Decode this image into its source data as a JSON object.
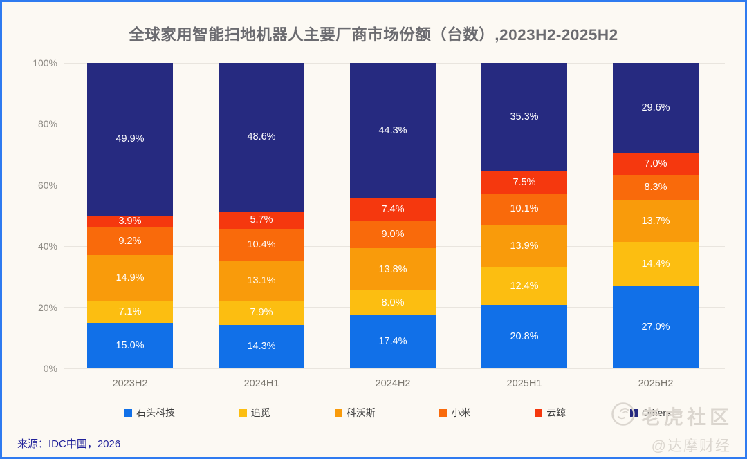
{
  "title": "全球家用智能扫地机器人主要厂商市场份额（台数）,2023H2-2025H2",
  "source": "来源：IDC中国，2026",
  "watermark": {
    "community": "老虎社区",
    "handle": "@达摩财经"
  },
  "colors": {
    "frame_border": "#2f7bf0",
    "background": "#fcf9f3",
    "gridline": "#e9e5de",
    "bar_label": "#ffffff"
  },
  "chart_data": {
    "type": "bar",
    "stacked": true,
    "value_suffix": "%",
    "categories": [
      "2023H2",
      "2024H1",
      "2024H2",
      "2025H1",
      "2025H2"
    ],
    "series": [
      {
        "name": "石头科技",
        "color": "#1170e8",
        "values": [
          15.0,
          14.3,
          17.4,
          20.8,
          27.0
        ]
      },
      {
        "name": "追觅",
        "color": "#fcbe11",
        "values": [
          7.1,
          7.9,
          8.0,
          12.4,
          14.4
        ]
      },
      {
        "name": "科沃斯",
        "color": "#f99b0b",
        "values": [
          14.9,
          13.1,
          13.8,
          13.9,
          13.7
        ]
      },
      {
        "name": "小米",
        "color": "#f96a0b",
        "values": [
          9.2,
          10.4,
          9.0,
          10.1,
          8.3
        ]
      },
      {
        "name": "云鲸",
        "color": "#f5380e",
        "values": [
          3.9,
          5.7,
          7.4,
          7.5,
          7.0
        ]
      },
      {
        "name": "Others",
        "color": "#262a80",
        "values": [
          49.9,
          48.6,
          44.3,
          35.3,
          29.6
        ]
      }
    ],
    "y_ticks": [
      "0%",
      "20%",
      "40%",
      "60%",
      "80%",
      "100%"
    ],
    "ylim": [
      0,
      100
    ],
    "grid": true,
    "legend_position": "bottom"
  }
}
